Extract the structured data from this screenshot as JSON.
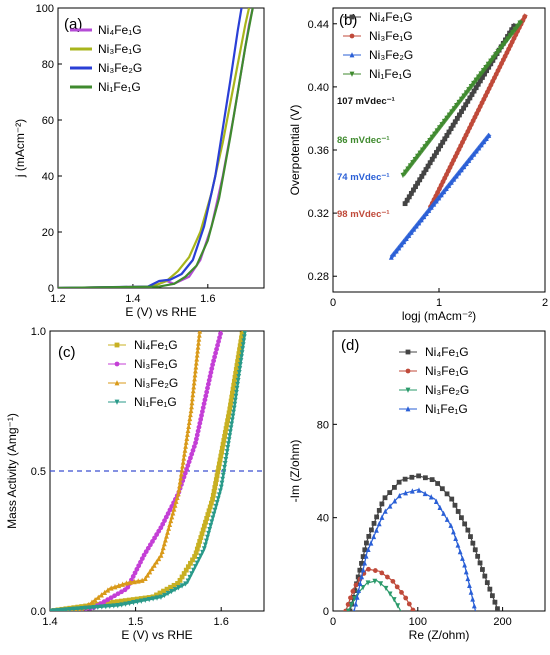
{
  "chart_data": [
    {
      "panel": "(a)",
      "type": "line",
      "xlabel": "E (V) vs RHE",
      "ylabel": "j (mAcm⁻²)",
      "xlim": [
        1.2,
        1.75
      ],
      "ylim": [
        0,
        100
      ],
      "xticks": [
        "1.2",
        "1.4",
        "1.6"
      ],
      "yticks": [
        "0",
        "20",
        "40",
        "60",
        "80",
        "100"
      ],
      "legend": "top-left",
      "grid": false,
      "series": [
        {
          "name": "Ni₄Fe₁G",
          "color": "#b44bd6",
          "x": [
            1.2,
            1.45,
            1.49,
            1.51,
            1.55,
            1.58,
            1.61,
            1.64,
            1.67,
            1.69,
            1.71,
            1.72
          ],
          "y": [
            0,
            0.5,
            2.5,
            1.5,
            4,
            10,
            22,
            40,
            62,
            78,
            94,
            100
          ]
        },
        {
          "name": "Ni₃Fe₁G",
          "color": "#a8b51c",
          "x": [
            1.2,
            1.45,
            1.49,
            1.52,
            1.55,
            1.58,
            1.61,
            1.64,
            1.66,
            1.68,
            1.7,
            1.71
          ],
          "y": [
            0,
            0.5,
            2.5,
            6,
            11,
            20,
            34,
            52,
            66,
            80,
            94,
            100
          ]
        },
        {
          "name": "Ni₃Fe₂G",
          "color": "#2a3fd6",
          "x": [
            1.2,
            1.44,
            1.47,
            1.5,
            1.53,
            1.56,
            1.59,
            1.62,
            1.64,
            1.66,
            1.68,
            1.69
          ],
          "y": [
            0,
            0.5,
            2.5,
            3,
            5,
            10,
            22,
            40,
            57,
            74,
            92,
            100
          ]
        },
        {
          "name": "Ni₁Fe₁G",
          "color": "#3f8a2e",
          "x": [
            1.2,
            1.47,
            1.51,
            1.54,
            1.57,
            1.6,
            1.63,
            1.66,
            1.68,
            1.7,
            1.72
          ],
          "y": [
            0,
            0.5,
            1.5,
            4,
            8,
            17,
            32,
            54,
            70,
            86,
            100
          ]
        }
      ]
    },
    {
      "panel": "(b)",
      "type": "scatter",
      "xlabel": "logj (mAcm⁻²)",
      "ylabel": "Overpotential (V)",
      "xlim": [
        0,
        2
      ],
      "ylim": [
        0.27,
        0.45
      ],
      "xticks": [
        "0",
        "1",
        "2"
      ],
      "yticks": [
        "0.28",
        "0.32",
        "0.36",
        "0.40",
        "0.44"
      ],
      "legend": "top-left",
      "grid": false,
      "annotations": [
        {
          "text": "107 mVdec⁻¹",
          "color": "#111111"
        },
        {
          "text": "86 mVdec⁻¹",
          "color": "#3f8a2e"
        },
        {
          "text": "74 mVdec⁻¹",
          "color": "#2a5fd6"
        },
        {
          "text": "98 mVdec⁻¹",
          "color": "#c04a3a"
        }
      ],
      "series": [
        {
          "name": "Ni₄Fe₁G",
          "color": "#444444",
          "marker": "square",
          "x": [
            0.68,
            1.72
          ],
          "y": [
            0.326,
            0.44
          ]
        },
        {
          "name": "Ni₃Fe₁G",
          "color": "#c04a3a",
          "marker": "circle",
          "x": [
            0.92,
            1.82
          ],
          "y": [
            0.324,
            0.446
          ]
        },
        {
          "name": "Ni₃Fe₂G",
          "color": "#2a5fd6",
          "marker": "triangle-up",
          "x": [
            0.55,
            1.48
          ],
          "y": [
            0.292,
            0.37
          ]
        },
        {
          "name": "Ni₁Fe₁G",
          "color": "#3f8a2e",
          "marker": "triangle-down",
          "x": [
            0.66,
            1.78
          ],
          "y": [
            0.344,
            0.442
          ]
        }
      ]
    },
    {
      "panel": "(c)",
      "type": "line",
      "xlabel": "E (V) vs RHE",
      "ylabel": "Mass Activity (Amg⁻¹)",
      "xlim": [
        1.4,
        1.65
      ],
      "ylim": [
        0,
        1
      ],
      "xticks": [
        "1.4",
        "1.5",
        "1.6"
      ],
      "yticks": [
        "0.0",
        "0.5",
        "1.0"
      ],
      "reference_line": {
        "y": 0.5,
        "color": "#3a4fd0",
        "style": "dashed"
      },
      "legend": "top-center",
      "grid": false,
      "series": [
        {
          "name": "Ni₄Fe₁G",
          "color": "#c8b022",
          "marker": "square",
          "x": [
            1.4,
            1.47,
            1.52,
            1.55,
            1.57,
            1.59,
            1.61,
            1.625
          ],
          "y": [
            0,
            0.03,
            0.05,
            0.1,
            0.2,
            0.4,
            0.72,
            1.0
          ]
        },
        {
          "name": "Ni₃Fe₁G",
          "color": "#c43fd6",
          "marker": "circle",
          "x": [
            1.4,
            1.45,
            1.49,
            1.51,
            1.53,
            1.55,
            1.57,
            1.59,
            1.6
          ],
          "y": [
            0,
            0.01,
            0.08,
            0.2,
            0.3,
            0.42,
            0.6,
            0.88,
            1.0
          ]
        },
        {
          "name": "Ni₃Fe₂G",
          "color": "#d99a1a",
          "marker": "triangle-up",
          "x": [
            1.4,
            1.44,
            1.47,
            1.49,
            1.51,
            1.53,
            1.55,
            1.565,
            1.575
          ],
          "y": [
            0,
            0.01,
            0.08,
            0.1,
            0.11,
            0.2,
            0.42,
            0.72,
            1.0
          ]
        },
        {
          "name": "Ni₁Fe₁G",
          "color": "#2a9a8a",
          "marker": "triangle-down",
          "x": [
            1.4,
            1.48,
            1.53,
            1.56,
            1.58,
            1.6,
            1.615,
            1.628
          ],
          "y": [
            0,
            0.02,
            0.05,
            0.1,
            0.22,
            0.44,
            0.72,
            1.0
          ]
        }
      ]
    },
    {
      "panel": "(d)",
      "type": "scatter",
      "xlabel": "Re (Z/ohm)",
      "ylabel": "-Im (Z/ohm)",
      "xlim": [
        0,
        250
      ],
      "ylim": [
        0,
        120
      ],
      "xticks": [
        "0",
        "100",
        "200"
      ],
      "yticks": [
        "0",
        "40",
        "80"
      ],
      "legend": "top-center",
      "grid": false,
      "series": [
        {
          "name": "Ni₄Fe₁G",
          "color": "#444444",
          "marker": "square",
          "x": [
            20,
            40,
            60,
            80,
            100,
            120,
            140,
            160,
            180,
            195
          ],
          "y": [
            0,
            30,
            48,
            56,
            58,
            56,
            48,
            34,
            14,
            0
          ]
        },
        {
          "name": "Ni₃Fe₁G",
          "color": "#c04a3a",
          "marker": "circle",
          "x": [
            15,
            25,
            40,
            55,
            70,
            85,
            95
          ],
          "y": [
            0,
            10,
            18,
            17,
            13,
            6,
            0
          ]
        },
        {
          "name": "Ni₃Fe₂G",
          "color": "#2a9a6a",
          "marker": "triangle-down",
          "x": [
            18,
            28,
            40,
            52,
            62,
            72,
            80
          ],
          "y": [
            0,
            7,
            12,
            13,
            10,
            5,
            0
          ]
        },
        {
          "name": "Ni₁Fe₁G",
          "color": "#2a5fd6",
          "marker": "triangle-up",
          "x": [
            25,
            40,
            60,
            80,
            100,
            120,
            140,
            155,
            168
          ],
          "y": [
            0,
            25,
            42,
            50,
            52,
            48,
            36,
            20,
            0
          ]
        }
      ]
    }
  ]
}
